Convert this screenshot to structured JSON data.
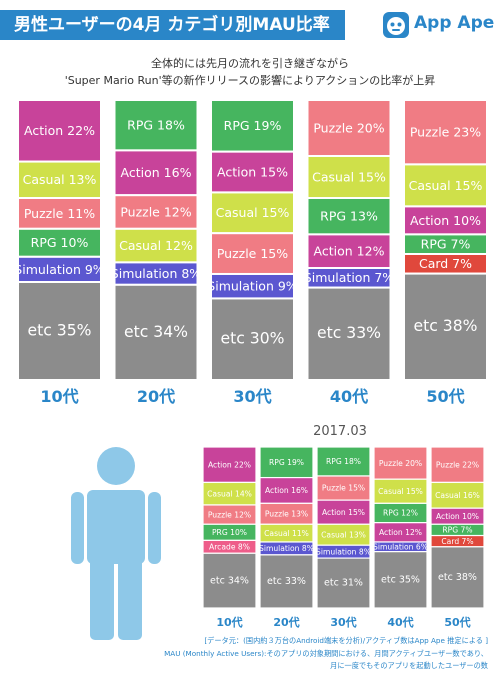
{
  "header": {
    "title": "男性ユーザーの4月 カテゴリ別MAU比率",
    "brand": "App Ape"
  },
  "subtitle": {
    "line1": "全体的には先月の流れを引き継ぎながら",
    "line2": "'Super Mario Run'等の新作リリースの影響によりアクションの比率が上昇"
  },
  "colors": {
    "Action": "#c8439a",
    "Casual": "#cfe04a",
    "Puzzle": "#f07c84",
    "RPG": "#46b55f",
    "Simulation": "#5b57d0",
    "Arcade": "#ee5d8a",
    "Card": "#e0483c",
    "etc": "#8c8c8c",
    "axis_label": "#2a86c8",
    "figure": "#8ec8e8"
  },
  "chart_data": [
    {
      "type": "stacked-bar",
      "categories": [
        "10代",
        "20代",
        "30代",
        "40代",
        "50代"
      ],
      "segments": [
        [
          {
            "label": "Action",
            "text": "Action 22%",
            "value": 22
          },
          {
            "label": "Casual",
            "text": "Casual 13%",
            "value": 13
          },
          {
            "label": "Puzzle",
            "text": "Puzzle 11%",
            "value": 11
          },
          {
            "label": "RPG",
            "text": "RPG 10%",
            "value": 10
          },
          {
            "label": "Simulation",
            "text": "Simulation 9%",
            "value": 9
          },
          {
            "label": "etc",
            "text": "etc 35%",
            "value": 35
          }
        ],
        [
          {
            "label": "RPG",
            "text": "RPG 18%",
            "value": 18
          },
          {
            "label": "Action",
            "text": "Action 16%",
            "value": 16
          },
          {
            "label": "Puzzle",
            "text": "Puzzle 12%",
            "value": 12
          },
          {
            "label": "Casual",
            "text": "Casual 12%",
            "value": 12
          },
          {
            "label": "Simulation",
            "text": "Simulation 8%",
            "value": 8
          },
          {
            "label": "etc",
            "text": "etc 34%",
            "value": 34
          }
        ],
        [
          {
            "label": "RPG",
            "text": "RPG 19%",
            "value": 19
          },
          {
            "label": "Action",
            "text": "Action 15%",
            "value": 15
          },
          {
            "label": "Casual",
            "text": "Casual 15%",
            "value": 15
          },
          {
            "label": "Puzzle",
            "text": "Puzzle 15%",
            "value": 15
          },
          {
            "label": "Simulation",
            "text": "Simulation 9%",
            "value": 9
          },
          {
            "label": "etc",
            "text": "etc 30%",
            "value": 30
          }
        ],
        [
          {
            "label": "Puzzle",
            "text": "Puzzle 20%",
            "value": 20
          },
          {
            "label": "Casual",
            "text": "Casual 15%",
            "value": 15
          },
          {
            "label": "RPG",
            "text": "RPG 13%",
            "value": 13
          },
          {
            "label": "Action",
            "text": "Action 12%",
            "value": 12
          },
          {
            "label": "Simulation",
            "text": "Simulation 7%",
            "value": 7
          },
          {
            "label": "etc",
            "text": "etc 33%",
            "value": 33
          }
        ],
        [
          {
            "label": "Puzzle",
            "text": "Puzzle 23%",
            "value": 23
          },
          {
            "label": "Casual",
            "text": "Casual 15%",
            "value": 15
          },
          {
            "label": "Action",
            "text": "Action 10%",
            "value": 10
          },
          {
            "label": "RPG",
            "text": "RPG 7%",
            "value": 7
          },
          {
            "label": "Card",
            "text": "Card 7%",
            "value": 7
          },
          {
            "label": "etc",
            "text": "etc 38%",
            "value": 38
          }
        ]
      ]
    },
    {
      "type": "stacked-bar",
      "title": "2017.03",
      "categories": [
        "10代",
        "20代",
        "30代",
        "40代",
        "50代"
      ],
      "segments": [
        [
          {
            "label": "Action",
            "text": "Action 22%",
            "value": 22
          },
          {
            "label": "Casual",
            "text": "Casual 14%",
            "value": 14
          },
          {
            "label": "Puzzle",
            "text": "Puzzle 12%",
            "value": 12
          },
          {
            "label": "RPG",
            "text": "PRG 10%",
            "value": 10
          },
          {
            "label": "Arcade",
            "text": "Arcade 8%",
            "value": 8
          },
          {
            "label": "etc",
            "text": "etc 34%",
            "value": 34
          }
        ],
        [
          {
            "label": "RPG",
            "text": "RPG 19%",
            "value": 19
          },
          {
            "label": "Action",
            "text": "Action 16%",
            "value": 16
          },
          {
            "label": "Puzzle",
            "text": "Puzzle 13%",
            "value": 13
          },
          {
            "label": "Casual",
            "text": "Casual 11%",
            "value": 11
          },
          {
            "label": "Simulation",
            "text": "Simulation 8%",
            "value": 8
          },
          {
            "label": "etc",
            "text": "etc 33%",
            "value": 33
          }
        ],
        [
          {
            "label": "RPG",
            "text": "RPG 18%",
            "value": 18
          },
          {
            "label": "Puzzle",
            "text": "Puzzle 15%",
            "value": 15
          },
          {
            "label": "Action",
            "text": "Action 15%",
            "value": 15
          },
          {
            "label": "Casual",
            "text": "Casual 13%",
            "value": 13
          },
          {
            "label": "Simulation",
            "text": "Simulation 8%",
            "value": 8
          },
          {
            "label": "etc",
            "text": "etc 31%",
            "value": 31
          }
        ],
        [
          {
            "label": "Puzzle",
            "text": "Puzzle 20%",
            "value": 20
          },
          {
            "label": "Casual",
            "text": "Casual 15%",
            "value": 15
          },
          {
            "label": "RPG",
            "text": "RPG 12%",
            "value": 12
          },
          {
            "label": "Action",
            "text": "Action 12%",
            "value": 12
          },
          {
            "label": "Simulation",
            "text": "Simulation 6%",
            "value": 6
          },
          {
            "label": "etc",
            "text": "etc 35%",
            "value": 35
          }
        ],
        [
          {
            "label": "Puzzle",
            "text": "Puzzle 22%",
            "value": 22
          },
          {
            "label": "Casual",
            "text": "Casual 16%",
            "value": 16
          },
          {
            "label": "Action",
            "text": "Action 10%",
            "value": 10
          },
          {
            "label": "RPG",
            "text": "RPG 7%",
            "value": 7
          },
          {
            "label": "Card",
            "text": "Card 7%",
            "value": 7
          },
          {
            "label": "etc",
            "text": "etc 38%",
            "value": 38
          }
        ]
      ]
    }
  ],
  "footnote": {
    "line1": "[データ元：(国内約３万台のAndroid端末を分析)/アクティブ数はApp Ape 推定による ]",
    "line2": "MAU (Monthly Active Users):そのアプリの対象期間における、月間アクティブユーザー数であり、",
    "line3": "月に一度でもそのアプリを起動したユーザーの数"
  }
}
